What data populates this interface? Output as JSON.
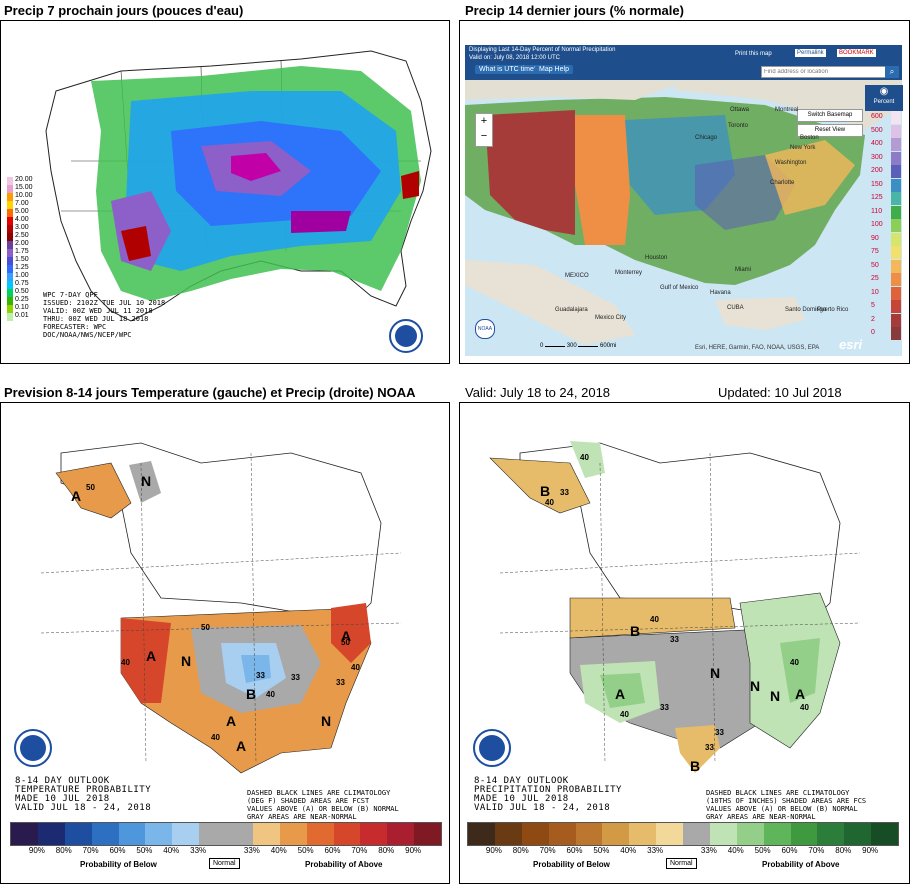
{
  "titles": {
    "top_left": "Precip 7 prochain jours (pouces d'eau)",
    "top_right": "Precip 14 dernier jours (% normale)",
    "bottom_left": "Prevision 8-14 jours Temperature (gauche) et Precip (droite) NOAA",
    "valid": "Valid: July 18 to 24, 2018",
    "updated": "Updated: 10 Jul 2018"
  },
  "qpf": {
    "legend": [
      "20.00",
      "15.00",
      "10.00",
      "7.00",
      "5.00",
      "4.00",
      "3.00",
      "2.50",
      "2.00",
      "1.75",
      "1.50",
      "1.25",
      "1.00",
      "0.75",
      "0.50",
      "0.25",
      "0.10",
      "0.01"
    ],
    "legend_colors": [
      "#f2c6e0",
      "#e8a0d2",
      "#ff9c00",
      "#ffd400",
      "#ff6a00",
      "#e00000",
      "#b00000",
      "#8b0000",
      "#6b3fa0",
      "#8d5fc9",
      "#4a4dd6",
      "#2f6bff",
      "#3aa0ff",
      "#00c8ff",
      "#00d35a",
      "#37b400",
      "#8fd400",
      "#bdf0a8"
    ],
    "info": [
      "WPC 7-DAY QPF",
      "ISSUED: 2102Z TUE JUL 10 2018",
      "VALID: 00Z WED JUL 11 2018",
      "THRU: 00Z WED JUL 18 2018",
      "FORECASTER: WPC",
      "DOC/NOAA/NWS/NCEP/WPC"
    ]
  },
  "esri": {
    "header_line1": "Displaying Last 14-Day Percent of Normal Precipitation",
    "header_line2": "Valid on: July 08, 2018 12:00 UTC",
    "btn_utc": "What is UTC time?",
    "btn_help": "Map Help",
    "print": "Print this map",
    "permalink": "Permalink",
    "bookmark": "BOOKMARK",
    "search_placeholder": "Find address or location",
    "switch_basemap": "Switch Basemap",
    "reset_view": "Reset View",
    "zoom_in": "+",
    "zoom_out": "−",
    "legend_title": "Percent",
    "legend": [
      "600",
      "500",
      "400",
      "300",
      "200",
      "150",
      "125",
      "110",
      "100",
      "90",
      "75",
      "50",
      "25",
      "10",
      "5",
      "2",
      "0"
    ],
    "legend_colors": [
      "#f3e4f2",
      "#ddc2e6",
      "#b59bd4",
      "#8e7bc7",
      "#5c5fb7",
      "#3b8fc3",
      "#4ab5a6",
      "#3fae4a",
      "#8ccf56",
      "#d6e56b",
      "#f2e06a",
      "#f4b85a",
      "#ef8f46",
      "#e0623a",
      "#c74536",
      "#a63c3a",
      "#8a3a3a"
    ],
    "places": [
      "Ottawa",
      "Montreal",
      "Toronto",
      "Boston",
      "New York",
      "Chicago",
      "Washington",
      "Charlotte",
      "Houston",
      "Miami",
      "MEXICO",
      "Havana",
      "CUBA",
      "Guadalajara",
      "Mexico City",
      "Monterrey",
      "Gulf of Mexico",
      "Santo Domingo",
      "Puerto Rico"
    ],
    "scale": [
      "0",
      "300",
      "600mi"
    ],
    "attribution": "Esri, HERE, Garmin, FAO, NOAA, USGS, EPA",
    "esri_logo": "esri"
  },
  "temp_outlook": {
    "info": [
      "8-14 DAY OUTLOOK",
      "TEMPERATURE PROBABILITY",
      "MADE   10 JUL 2018",
      "VALID  JUL 18 - 24, 2018"
    ],
    "note": [
      "DASHED BLACK LINES ARE CLIMATOLOGY",
      "(DEG F) SHADED AREAS ARE FCST",
      "VALUES ABOVE (A) OR BELOW (B) NORMAL",
      "GRAY AREAS ARE NEAR-NORMAL"
    ],
    "map_labels": [
      "N",
      "A",
      "50",
      "40",
      "A",
      "50",
      "N",
      "33",
      "B",
      "40",
      "33",
      "N",
      "A",
      "40",
      "A",
      "50",
      "40",
      "33",
      "A"
    ],
    "colorbar": [
      "#2a1b4e",
      "#1c2a72",
      "#1e4ea0",
      "#2d6fc1",
      "#4f97dc",
      "#7ab6ea",
      "#a8cef0",
      "#a9a9a9",
      "#a9a9a9",
      "#f0c481",
      "#e79a4a",
      "#e06a2f",
      "#d5462a",
      "#c72b2e",
      "#a91f2f",
      "#7f1a24"
    ],
    "ticks": [
      "90%",
      "80%",
      "70%",
      "60%",
      "50%",
      "40%",
      "33%",
      "33%",
      "40%",
      "50%",
      "60%",
      "70%",
      "80%",
      "90%"
    ],
    "below": "Probability of Below",
    "normal": "Normal",
    "above": "Probability of Above"
  },
  "precip_outlook": {
    "info": [
      "8-14 DAY OUTLOOK",
      "PRECIPITATION PROBABILITY",
      "MADE   10 JUL 2018",
      "VALID  JUL 18 - 24, 2018"
    ],
    "note": [
      "DASHED BLACK LINES ARE CLIMATOLOGY",
      "(10THS OF INCHES) SHADED AREAS ARE FCS",
      "VALUES ABOVE (A) OR BELOW (B) NORMAL",
      "GRAY AREAS ARE NEAR-NORMAL"
    ],
    "map_labels": [
      "B",
      "40",
      "40",
      "33",
      "B",
      "40",
      "33",
      "N",
      "A",
      "40",
      "33",
      "N",
      "N",
      "40",
      "A",
      "40",
      "B",
      "33",
      "33"
    ],
    "colorbar": [
      "#3e2a1a",
      "#6a3a12",
      "#8e4a12",
      "#a65c1f",
      "#bd762e",
      "#d39a46",
      "#e6bb6a",
      "#f2d99a",
      "#a9a9a9",
      "#bfe3b4",
      "#93cf89",
      "#5fb65a",
      "#3f9a3f",
      "#2d7d3a",
      "#1f6630",
      "#174d24"
    ],
    "ticks": [
      "90%",
      "80%",
      "70%",
      "60%",
      "50%",
      "40%",
      "33%",
      "33%",
      "40%",
      "50%",
      "60%",
      "70%",
      "80%",
      "90%"
    ],
    "below": "Probability of Below",
    "normal": "Normal",
    "above": "Probability of Above"
  },
  "noaa": "NOAA"
}
